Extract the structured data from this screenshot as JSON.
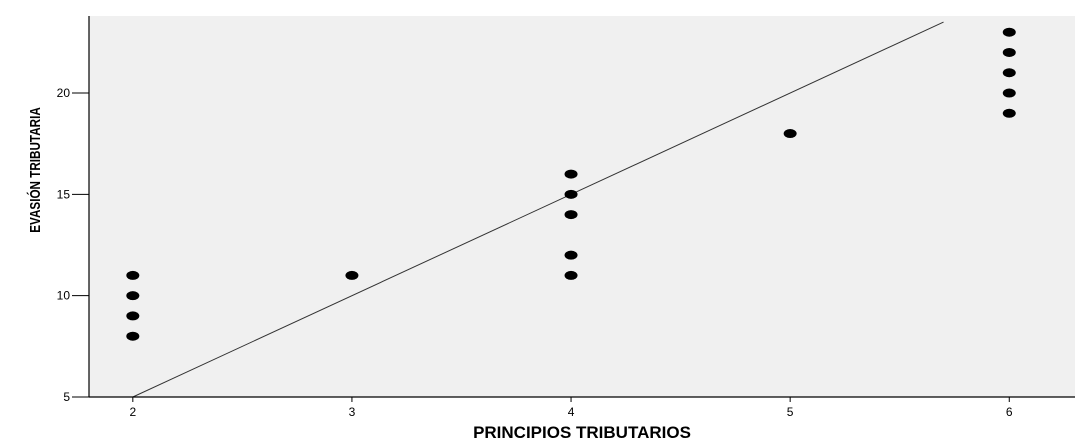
{
  "chart_data": {
    "type": "scatter",
    "xlabel": "PRINCIPIOS TRIBUTARIOS",
    "ylabel": "EVASIÓN TRIBUTARIA",
    "xlim": [
      1.8,
      6.3
    ],
    "ylim": [
      5,
      23.8
    ],
    "xticks": [
      2,
      3,
      4,
      5,
      6
    ],
    "yticks": [
      5,
      10,
      15,
      20
    ],
    "grid": false,
    "points": [
      {
        "x": 2,
        "y": 8
      },
      {
        "x": 2,
        "y": 9
      },
      {
        "x": 2,
        "y": 10
      },
      {
        "x": 2,
        "y": 11
      },
      {
        "x": 3,
        "y": 11
      },
      {
        "x": 4,
        "y": 11
      },
      {
        "x": 4,
        "y": 12
      },
      {
        "x": 4,
        "y": 14
      },
      {
        "x": 4,
        "y": 15
      },
      {
        "x": 4,
        "y": 16
      },
      {
        "x": 5,
        "y": 18
      },
      {
        "x": 6,
        "y": 19
      },
      {
        "x": 6,
        "y": 20
      },
      {
        "x": 6,
        "y": 21
      },
      {
        "x": 6,
        "y": 22
      },
      {
        "x": 6,
        "y": 23
      }
    ],
    "fit_line": {
      "x": [
        2,
        5.7
      ],
      "y": [
        5,
        23.5
      ]
    },
    "colors": {
      "plot_background": "#f0f0f0",
      "marker": "#000000",
      "line": "#333333",
      "axis": "#000000"
    }
  }
}
